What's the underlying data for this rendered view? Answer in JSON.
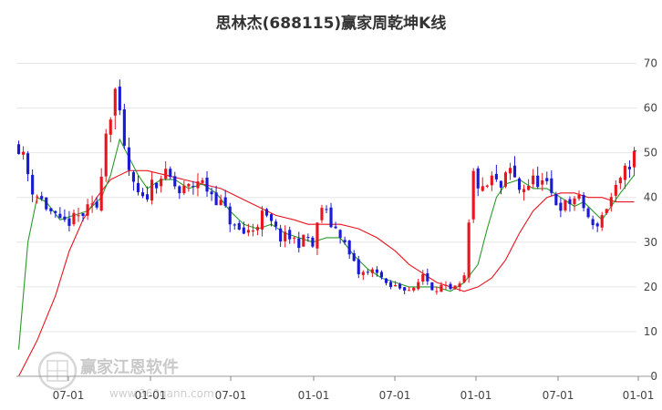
{
  "chart_data": {
    "type": "candlestick",
    "title": "思林杰(688115)赢家周乾坤K线",
    "xlabel": "",
    "ylabel": "",
    "ylim": [
      0,
      75
    ],
    "y_ticks": [
      0,
      10,
      20,
      30,
      40,
      50,
      60,
      70
    ],
    "x_ticks": [
      "07-01",
      "01-01",
      "07-01",
      "01-01",
      "07-01",
      "01-01",
      "07-01",
      "01-01"
    ],
    "grid": "horizontal",
    "up_color": "#e8141e",
    "down_color": "#1a1ad6",
    "ma_short_color": "#2a9a2a",
    "ma_long_color": "#e8141e",
    "last_price": 50.4,
    "price_path": [
      [
        0,
        52
      ],
      [
        3,
        42
      ],
      [
        6,
        38
      ],
      [
        9,
        34
      ],
      [
        12,
        35
      ],
      [
        15,
        37
      ],
      [
        17,
        38
      ],
      [
        19,
        55
      ],
      [
        21,
        64
      ],
      [
        23,
        50
      ],
      [
        25,
        42
      ],
      [
        27,
        39
      ],
      [
        29,
        43
      ],
      [
        31,
        45
      ],
      [
        33,
        44
      ],
      [
        35,
        41
      ],
      [
        37,
        42
      ],
      [
        39,
        44
      ],
      [
        41,
        42
      ],
      [
        43,
        40
      ],
      [
        45,
        37
      ],
      [
        47,
        33
      ],
      [
        49,
        32
      ],
      [
        51,
        33
      ],
      [
        53,
        36
      ],
      [
        55,
        34
      ],
      [
        57,
        31
      ],
      [
        59,
        31
      ],
      [
        61,
        30
      ],
      [
        63,
        31
      ],
      [
        64,
        29
      ],
      [
        66,
        38
      ],
      [
        68,
        34
      ],
      [
        70,
        32
      ],
      [
        72,
        27
      ],
      [
        74,
        23
      ],
      [
        76,
        23
      ],
      [
        78,
        24
      ],
      [
        80,
        20
      ],
      [
        82,
        20
      ],
      [
        84,
        20
      ],
      [
        86,
        19
      ],
      [
        88,
        23
      ],
      [
        90,
        20
      ],
      [
        92,
        20
      ],
      [
        94,
        19
      ],
      [
        96,
        20
      ],
      [
        97,
        22
      ],
      [
        99,
        45
      ],
      [
        101,
        41
      ],
      [
        103,
        44
      ],
      [
        105,
        42
      ],
      [
        107,
        46
      ],
      [
        109,
        42
      ],
      [
        111,
        43
      ],
      [
        113,
        44
      ],
      [
        115,
        42
      ],
      [
        117,
        39
      ],
      [
        119,
        38
      ],
      [
        121,
        40
      ],
      [
        123,
        38
      ],
      [
        125,
        33
      ],
      [
        127,
        36
      ],
      [
        129,
        40
      ],
      [
        131,
        43
      ],
      [
        133,
        48
      ],
      [
        134,
        50.4
      ]
    ],
    "ma_short_path": [
      [
        0,
        6
      ],
      [
        2,
        30
      ],
      [
        4,
        40
      ],
      [
        6,
        39
      ],
      [
        9,
        35
      ],
      [
        12,
        36
      ],
      [
        15,
        37
      ],
      [
        18,
        40
      ],
      [
        20,
        45
      ],
      [
        22,
        53
      ],
      [
        24,
        49
      ],
      [
        26,
        45
      ],
      [
        28,
        42
      ],
      [
        31,
        44
      ],
      [
        34,
        44
      ],
      [
        37,
        42
      ],
      [
        40,
        43
      ],
      [
        43,
        41
      ],
      [
        46,
        37
      ],
      [
        49,
        34
      ],
      [
        52,
        33
      ],
      [
        55,
        34
      ],
      [
        58,
        32
      ],
      [
        61,
        31
      ],
      [
        64,
        30
      ],
      [
        67,
        31
      ],
      [
        70,
        31
      ],
      [
        73,
        27
      ],
      [
        76,
        24
      ],
      [
        79,
        22
      ],
      [
        82,
        21
      ],
      [
        85,
        20
      ],
      [
        88,
        20
      ],
      [
        91,
        20
      ],
      [
        94,
        19
      ],
      [
        97,
        21
      ],
      [
        100,
        25
      ],
      [
        102,
        33
      ],
      [
        104,
        40
      ],
      [
        106,
        43
      ],
      [
        109,
        44
      ],
      [
        112,
        42
      ],
      [
        115,
        42
      ],
      [
        118,
        40
      ],
      [
        121,
        38
      ],
      [
        123,
        39
      ],
      [
        125,
        37
      ],
      [
        127,
        35
      ],
      [
        129,
        38
      ],
      [
        131,
        41
      ],
      [
        134,
        45
      ]
    ],
    "ma_long_path": [
      [
        0,
        0
      ],
      [
        4,
        8
      ],
      [
        8,
        18
      ],
      [
        11,
        28
      ],
      [
        14,
        35
      ],
      [
        17,
        40
      ],
      [
        20,
        44
      ],
      [
        24,
        46
      ],
      [
        28,
        46
      ],
      [
        32,
        45
      ],
      [
        36,
        44
      ],
      [
        40,
        43
      ],
      [
        44,
        42
      ],
      [
        48,
        40
      ],
      [
        52,
        38
      ],
      [
        56,
        36
      ],
      [
        60,
        35
      ],
      [
        63,
        34
      ],
      [
        66,
        34
      ],
      [
        70,
        34
      ],
      [
        74,
        33
      ],
      [
        78,
        31
      ],
      [
        82,
        28
      ],
      [
        85,
        25
      ],
      [
        88,
        23
      ],
      [
        91,
        21
      ],
      [
        94,
        20
      ],
      [
        97,
        19
      ],
      [
        100,
        20
      ],
      [
        103,
        22
      ],
      [
        106,
        26
      ],
      [
        109,
        32
      ],
      [
        112,
        37
      ],
      [
        115,
        40
      ],
      [
        118,
        41
      ],
      [
        121,
        41
      ],
      [
        124,
        40
      ],
      [
        127,
        40
      ],
      [
        130,
        39
      ],
      [
        134,
        39
      ]
    ]
  },
  "watermark": {
    "logo_text": "赢家江恩软件",
    "url_text": "www.360gann.com",
    "seal_text": "赢家\n江恩"
  }
}
